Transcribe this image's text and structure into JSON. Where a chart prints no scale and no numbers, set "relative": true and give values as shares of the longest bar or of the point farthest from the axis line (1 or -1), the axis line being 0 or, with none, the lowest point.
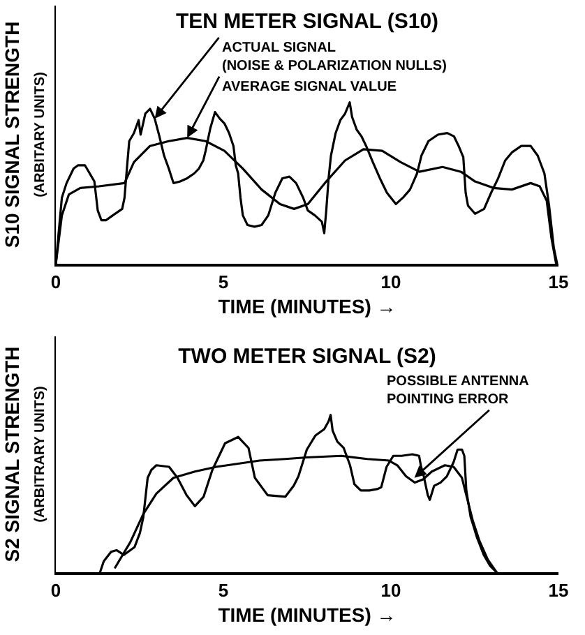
{
  "chart_data": [
    {
      "type": "line",
      "title": "TEN METER SIGNAL (S10)",
      "xlabel": "TIME (MINUTES) →",
      "ylabel": "S10 SIGNAL STRENGTH\n(ARBITARY UNITS)",
      "relative": true,
      "xlim": [
        0,
        15
      ],
      "xticks": [
        0,
        5,
        10,
        15
      ],
      "series": [
        {
          "color": "#000000",
          "x": [
            0,
            0.18,
            0.32,
            0.53,
            0.66,
            0.87,
            1.01,
            1.15,
            1.25,
            1.36,
            1.5,
            1.7,
            1.98,
            2.05,
            2.12,
            2.19,
            2.33,
            2.47,
            2.53,
            2.67,
            2.81,
            2.95,
            3.09,
            3.23,
            3.37,
            3.51,
            3.71,
            3.92,
            4.13,
            4.27,
            4.4,
            4.47,
            4.61,
            4.75,
            4.89,
            5.03,
            5.17,
            5.3,
            5.37,
            5.44,
            5.51,
            5.58,
            5.72,
            5.93,
            6.14,
            6.34,
            6.55,
            6.76,
            6.97,
            7.17,
            7.38,
            7.52,
            7.73,
            7.94,
            8.01,
            8.07,
            8.14,
            8.21,
            8.35,
            8.49,
            8.63,
            8.77,
            8.84,
            8.98,
            9.12,
            9.26,
            9.46,
            9.67,
            9.88,
            10.15,
            10.36,
            10.57,
            10.78,
            10.91,
            11.12,
            11.4,
            11.68,
            11.88,
            12.02,
            12.16,
            12.23,
            12.3,
            12.51,
            12.78,
            12.99,
            13.2,
            13.41,
            13.61,
            13.89,
            14.17,
            14.38,
            14.58,
            14.72,
            14.86,
            14.96
          ],
          "values": [
            0,
            0.41,
            0.5,
            0.59,
            0.61,
            0.61,
            0.56,
            0.51,
            0.33,
            0.27,
            0.27,
            0.3,
            0.34,
            0.41,
            0.59,
            0.76,
            0.81,
            0.89,
            0.8,
            0.93,
            0.96,
            0.9,
            0.79,
            0.67,
            0.59,
            0.5,
            0.51,
            0.53,
            0.56,
            0.59,
            0.64,
            0.7,
            0.84,
            0.94,
            0.9,
            0.87,
            0.81,
            0.73,
            0.61,
            0.56,
            0.41,
            0.3,
            0.24,
            0.23,
            0.24,
            0.3,
            0.44,
            0.53,
            0.54,
            0.5,
            0.41,
            0.33,
            0.3,
            0.26,
            0.19,
            0.33,
            0.53,
            0.67,
            0.81,
            0.89,
            0.93,
            1,
            0.91,
            0.83,
            0.79,
            0.73,
            0.63,
            0.53,
            0.44,
            0.37,
            0.41,
            0.46,
            0.56,
            0.67,
            0.76,
            0.8,
            0.81,
            0.79,
            0.73,
            0.66,
            0.44,
            0.36,
            0.31,
            0.34,
            0.44,
            0.53,
            0.64,
            0.69,
            0.73,
            0.73,
            0.67,
            0.56,
            0.36,
            0.1,
            0
          ]
        },
        {
          "color": "#000000",
          "x": [
            0,
            0.18,
            0.39,
            0.73,
            1.29,
            2.05,
            2.33,
            2.81,
            3.37,
            3.92,
            4.47,
            5.03,
            5.58,
            6.14,
            6.69,
            7.11,
            7.52,
            8.07,
            8.63,
            9.18,
            9.74,
            10.29,
            10.85,
            11.54,
            12.09,
            12.51,
            13.06,
            13.61,
            14.17,
            14.44,
            14.65,
            14.79,
            14.93
          ],
          "values": [
            0,
            0.3,
            0.43,
            0.47,
            0.48,
            0.5,
            0.63,
            0.73,
            0.76,
            0.78,
            0.76,
            0.7,
            0.59,
            0.46,
            0.37,
            0.34,
            0.37,
            0.51,
            0.64,
            0.71,
            0.7,
            0.63,
            0.57,
            0.6,
            0.57,
            0.51,
            0.47,
            0.46,
            0.5,
            0.48,
            0.39,
            0.16,
            0
          ]
        }
      ],
      "annotations": [
        {
          "text": "ACTUAL SIGNAL\n(NOISE & POLARIZATION NULLS)",
          "x": 2.95,
          "y": 0.9
        },
        {
          "text": "AVERAGE SIGNAL VALUE",
          "x": 3.92,
          "y": 0.78
        }
      ]
    },
    {
      "type": "line",
      "title": "TWO METER SIGNAL (S2)",
      "xlabel": "TIME (MINUTES) →",
      "ylabel": "S2 SIGNAL STRENGTH\n(ARBITRARY UNITS)",
      "relative": true,
      "xlim": [
        0,
        15
      ],
      "xticks": [
        0,
        5,
        10,
        15
      ],
      "series": [
        {
          "color": "#000000",
          "x": [
            1.32,
            1.43,
            1.65,
            1.81,
            2.03,
            2.35,
            2.51,
            2.61,
            2.74,
            2.85,
            3.0,
            3.38,
            3.63,
            3.9,
            4.15,
            4.41,
            4.67,
            5.05,
            5.44,
            5.75,
            5.94,
            6.32,
            6.85,
            7.1,
            7.24,
            7.49,
            7.75,
            8.01,
            8.14,
            8.2,
            8.26,
            8.4,
            8.59,
            8.78,
            8.91,
            9.1,
            9.36,
            9.61,
            9.71,
            9.87,
            10.07,
            10.32,
            10.64,
            10.84,
            10.9,
            10.96,
            11.1,
            11.16,
            11.29,
            11.48,
            11.67,
            11.87,
            11.99,
            12.12,
            12.19,
            12.25,
            12.38,
            12.57,
            12.77,
            12.96,
            13.15
          ],
          "values": [
            0,
            0.07,
            0.13,
            0.14,
            0.11,
            0.16,
            0.25,
            0.35,
            0.6,
            0.65,
            0.68,
            0.67,
            0.6,
            0.49,
            0.42,
            0.48,
            0.65,
            0.82,
            0.86,
            0.79,
            0.6,
            0.49,
            0.48,
            0.55,
            0.61,
            0.78,
            0.87,
            0.91,
            0.96,
            1,
            0.9,
            0.83,
            0.79,
            0.68,
            0.56,
            0.52,
            0.52,
            0.53,
            0.54,
            0.67,
            0.74,
            0.74,
            0.75,
            0.74,
            0.67,
            0.63,
            0.49,
            0.46,
            0.55,
            0.57,
            0.61,
            0.7,
            0.78,
            0.78,
            0.74,
            0.52,
            0.35,
            0.22,
            0.11,
            0.04,
            0
          ]
        },
        {
          "color": "#000000",
          "x": [
            1.77,
            2.22,
            2.61,
            3.0,
            3.51,
            4.15,
            4.79,
            5.44,
            6.08,
            6.85,
            7.49,
            8.52,
            9.29,
            9.94,
            10.19,
            10.45,
            10.71,
            10.96,
            11.22,
            11.61,
            11.87,
            12.12,
            12.25,
            12.44,
            12.64,
            12.89,
            13.15
          ],
          "values": [
            0.03,
            0.19,
            0.37,
            0.5,
            0.6,
            0.64,
            0.67,
            0.69,
            0.71,
            0.72,
            0.73,
            0.74,
            0.72,
            0.71,
            0.68,
            0.61,
            0.57,
            0.59,
            0.64,
            0.68,
            0.67,
            0.6,
            0.49,
            0.33,
            0.2,
            0.08,
            0
          ]
        }
      ],
      "annotations": [
        {
          "text": "POSSIBLE ANTENNA\nPOINTING ERROR",
          "x": 10.7,
          "y": 0.6
        }
      ]
    }
  ]
}
